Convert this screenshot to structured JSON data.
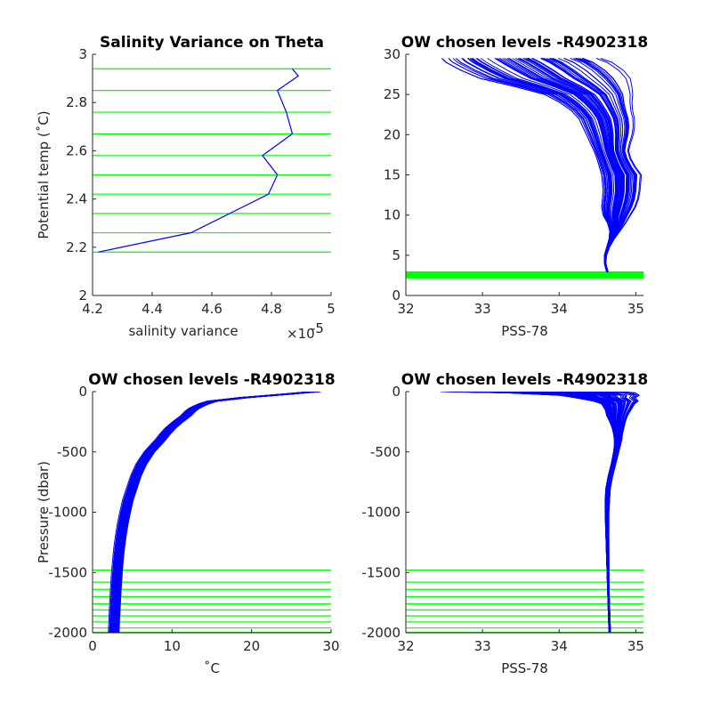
{
  "figure": {
    "background": "#ffffff"
  },
  "chart_data": [
    {
      "id": "p1",
      "type": "line",
      "title": "Salinity Variance on Theta",
      "xlabel": "salinity variance",
      "xlabel_multiplier": "×10",
      "xlabel_multiplier_exp": "-5",
      "ylabel": "Potential temp (˚C)",
      "xlim": [
        4.2,
        5.0
      ],
      "ylim": [
        2.0,
        3.0
      ],
      "xticks": [
        4.2,
        4.4,
        4.6,
        4.8,
        5.0
      ],
      "xtick_labels": [
        "4.2",
        "4.4",
        "4.6",
        "4.8",
        "5"
      ],
      "yticks": [
        2.0,
        2.2,
        2.4,
        2.6,
        2.8,
        3.0
      ],
      "ytick_labels": [
        "2",
        "2.2",
        "2.4",
        "2.6",
        "2.8",
        "3"
      ],
      "grid": false,
      "hlines": {
        "color": "#00ff00",
        "values": [
          2.94,
          2.85,
          2.76,
          2.67,
          2.58,
          2.5,
          2.42,
          2.34,
          2.26,
          2.18
        ]
      },
      "series": [
        {
          "color": "#0000ff",
          "x": [
            4.87,
            4.89,
            4.82,
            4.85,
            4.87,
            4.77,
            4.82,
            4.79,
            4.53,
            4.22
          ],
          "y": [
            2.94,
            2.91,
            2.85,
            2.76,
            2.67,
            2.58,
            2.5,
            2.42,
            2.26,
            2.18
          ]
        }
      ]
    },
    {
      "id": "p2",
      "type": "line",
      "title": "OW chosen levels -R4902318",
      "xlabel": "PSS-78",
      "ylabel": "",
      "xlim": [
        32,
        35.1
      ],
      "ylim": [
        0,
        30
      ],
      "xticks": [
        32,
        33,
        34,
        35
      ],
      "xtick_labels": [
        "32",
        "33",
        "34",
        "35"
      ],
      "yticks": [
        0,
        5,
        10,
        15,
        20,
        25,
        30
      ],
      "ytick_labels": [
        "0",
        "5",
        "10",
        "15",
        "20",
        "25",
        "30"
      ],
      "grid": false,
      "hlines": {
        "color": "#00ff00",
        "values": [
          2.18,
          2.26,
          2.34,
          2.42,
          2.5,
          2.58,
          2.67,
          2.76,
          2.85,
          2.94
        ]
      },
      "profile_band": {
        "color": "#0000ff",
        "y": [
          2.9,
          4,
          5,
          6,
          7,
          8,
          9,
          10,
          11,
          12,
          13,
          14,
          15,
          16,
          17,
          18,
          19,
          20,
          21,
          22,
          23,
          24,
          25,
          26,
          27,
          28,
          29,
          29.5
        ],
        "min": [
          34.62,
          34.59,
          34.59,
          34.62,
          34.65,
          34.66,
          34.63,
          34.57,
          34.55,
          34.56,
          34.57,
          34.56,
          34.55,
          34.52,
          34.49,
          34.45,
          34.4,
          34.35,
          34.3,
          34.25,
          34.15,
          34.0,
          33.8,
          33.4,
          32.95,
          32.7,
          32.5,
          32.45
        ],
        "max": [
          34.64,
          34.61,
          34.62,
          34.66,
          34.72,
          34.8,
          34.88,
          34.95,
          35.02,
          35.06,
          35.08,
          35.09,
          35.1,
          35.02,
          34.96,
          34.93,
          34.96,
          35.0,
          35.02,
          35.02,
          35.0,
          35.0,
          35.02,
          35.03,
          35.03,
          34.95,
          34.8,
          34.65
        ]
      }
    },
    {
      "id": "p3",
      "type": "line",
      "title": "OW chosen levels -R4902318",
      "xlabel": "˚C",
      "ylabel": "Pressure (dbar)",
      "xlim": [
        0,
        30
      ],
      "ylim": [
        -2000,
        0
      ],
      "xticks": [
        0,
        10,
        20,
        30
      ],
      "xtick_labels": [
        "0",
        "10",
        "20",
        "30"
      ],
      "yticks": [
        -2000,
        -1500,
        -1000,
        -500,
        0
      ],
      "ytick_labels": [
        "-2000",
        "-1500",
        "-1000",
        "-500",
        "0"
      ],
      "grid": false,
      "hlines": {
        "color": "#00ff00",
        "values": [
          -1480,
          -1580,
          -1640,
          -1700,
          -1760,
          -1810,
          -1860,
          -1910,
          -1960,
          -1995
        ]
      },
      "profile_band": {
        "color": "#0000ff",
        "y": [
          0,
          -20,
          -50,
          -80,
          -100,
          -120,
          -140,
          -160,
          -180,
          -200,
          -250,
          -300,
          -350,
          -400,
          -450,
          -500,
          -600,
          -700,
          -800,
          -900,
          -1000,
          -1100,
          -1200,
          -1300,
          -1400,
          -1500,
          -1600,
          -1700,
          -1800,
          -1900,
          -2000
        ],
        "min": [
          27.5,
          24.0,
          18.5,
          14.5,
          13.5,
          12.8,
          12.2,
          11.8,
          11.5,
          11.2,
          10.2,
          9.3,
          8.6,
          8.0,
          7.3,
          6.6,
          5.6,
          4.9,
          4.4,
          3.9,
          3.55,
          3.25,
          3.0,
          2.8,
          2.65,
          2.52,
          2.42,
          2.33,
          2.25,
          2.18,
          2.12
        ]
      }
    },
    {
      "id": "p4",
      "type": "line",
      "title": "OW chosen levels -R4902318",
      "xlabel": "PSS-78",
      "ylabel": "",
      "xlim": [
        32,
        35.1
      ],
      "ylim": [
        -2000,
        0
      ],
      "xticks": [
        32,
        33,
        34,
        35
      ],
      "xtick_labels": [
        "32",
        "33",
        "34",
        "35"
      ],
      "yticks": [
        -2000,
        -1500,
        -1000,
        -500,
        0
      ],
      "ytick_labels": [
        "-2000",
        "-1500",
        "-1000",
        "-500",
        "0"
      ],
      "grid": false,
      "hlines": {
        "color": "#00ff00",
        "values": [
          -1480,
          -1580,
          -1640,
          -1700,
          -1760,
          -1810,
          -1860,
          -1910,
          -1960,
          -1995
        ]
      },
      "profile_band": {
        "color": "#0000ff",
        "y": [
          0,
          -10,
          -30,
          -50,
          -80,
          -100,
          -150,
          -200,
          -250,
          -300,
          -350,
          -400,
          -450,
          -500,
          -600,
          -700,
          -800,
          -900,
          -1000,
          -1200,
          -1400,
          -1600,
          -1800,
          -2000
        ],
        "min": [
          32.45,
          33.3,
          34.0,
          34.2,
          34.45,
          34.55,
          34.6,
          34.62,
          34.66,
          34.69,
          34.71,
          34.72,
          34.72,
          34.71,
          34.68,
          34.64,
          34.61,
          34.6,
          34.6,
          34.61,
          34.62,
          34.63,
          34.64,
          34.65
        ],
        "max": [
          34.9,
          35.05,
          35.08,
          35.02,
          35.05,
          35.0,
          34.95,
          34.9,
          34.87,
          34.85,
          34.83,
          34.82,
          34.8,
          34.78,
          34.74,
          34.7,
          34.67,
          34.66,
          34.65,
          34.65,
          34.65,
          34.65,
          34.66,
          34.67
        ]
      }
    }
  ]
}
